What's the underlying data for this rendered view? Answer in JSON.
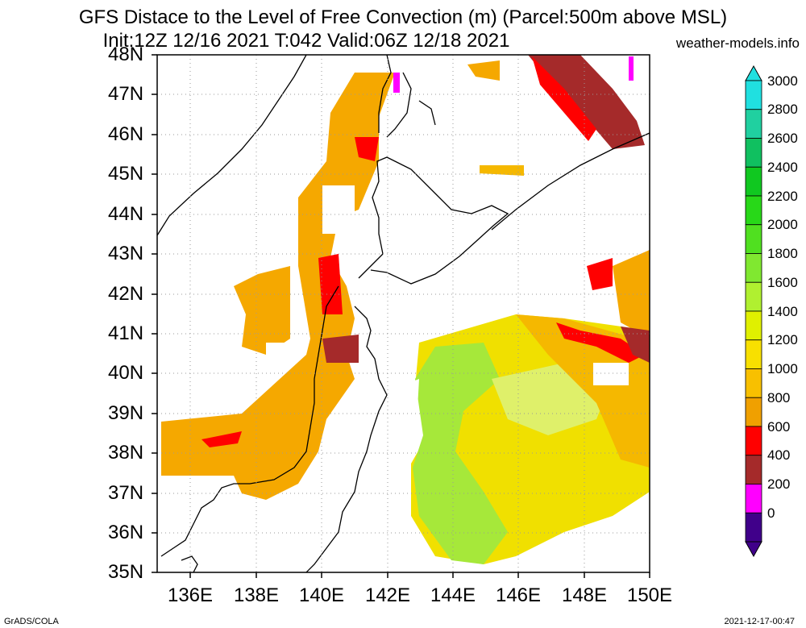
{
  "header": {
    "title_line1": "GFS Distace to the Level of Free Convection (m) (Parcel:500m above MSL)",
    "title_line2": "Init:12Z 12/16 2021 T:042 Valid:06Z 12/18 2021",
    "site": "weather-models.info"
  },
  "footer": {
    "left": "GrADS/COLA",
    "right": "2021-12-17-00:47"
  },
  "map": {
    "lat_labels": [
      "48N",
      "47N",
      "46N",
      "45N",
      "44N",
      "43N",
      "42N",
      "41N",
      "40N",
      "39N",
      "38N",
      "37N",
      "36N",
      "35N"
    ],
    "lon_labels": [
      "136E",
      "138E",
      "140E",
      "142E",
      "144E",
      "146E",
      "148E",
      "150E"
    ],
    "lon_range": [
      135,
      150
    ],
    "lat_range": [
      35,
      48
    ]
  },
  "colorbar": {
    "labels": [
      "3000",
      "2800",
      "2600",
      "2400",
      "2200",
      "2000",
      "1800",
      "1600",
      "1400",
      "1200",
      "1000",
      "800",
      "600",
      "400",
      "200",
      "0"
    ],
    "colors": [
      "#20e0e0",
      "#20d0a0",
      "#10c060",
      "#10c820",
      "#28d818",
      "#50e020",
      "#80e830",
      "#b0f030",
      "#e0f000",
      "#f8e000",
      "#f8c000",
      "#f0a000",
      "#ff0000",
      "#a52a2a",
      "#ff00ff",
      "#40008a"
    ]
  }
}
